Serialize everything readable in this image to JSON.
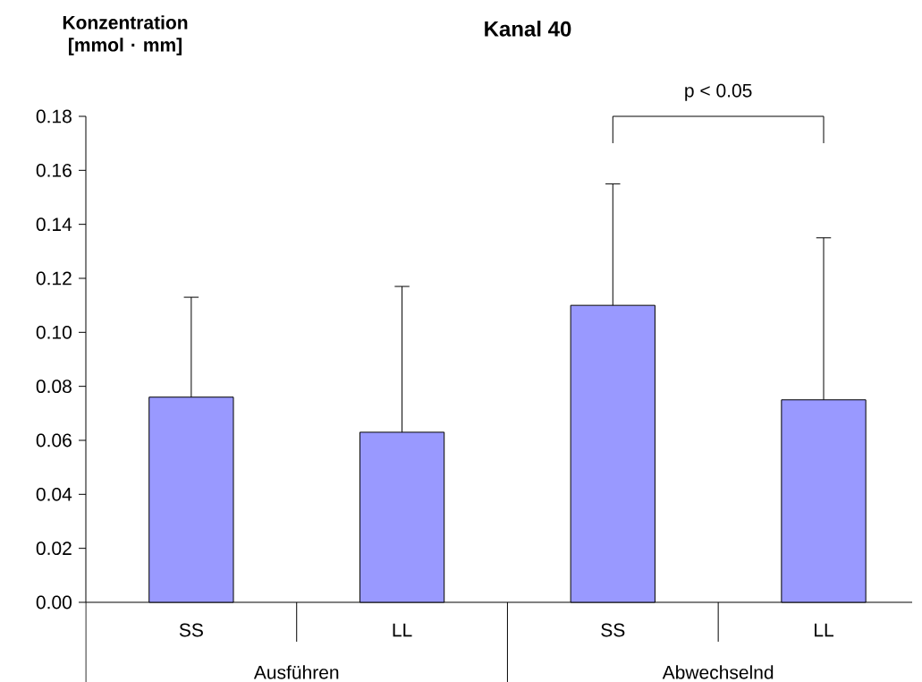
{
  "chart_data": {
    "type": "bar",
    "title": "Kanal 40",
    "ylabel": "Konzentration [mmol · mm]",
    "categories": [
      "SS",
      "LL",
      "SS",
      "LL"
    ],
    "values": [
      0.076,
      0.063,
      0.11,
      0.075
    ],
    "errors": [
      [
        0.076,
        0.113
      ],
      [
        0.063,
        0.117
      ],
      [
        0.11,
        0.155
      ],
      [
        0.075,
        0.135
      ]
    ],
    "color": "#9999ff",
    "ylim": [
      0,
      0.18
    ],
    "yticks": [
      {
        "value": 0,
        "label": "0.00"
      },
      {
        "value": 0.02,
        "label": "0.02"
      },
      {
        "value": 0.04,
        "label": "0.04"
      },
      {
        "value": 0.06,
        "label": "0.06"
      },
      {
        "value": 0.08,
        "label": "0.08"
      },
      {
        "value": 0.1,
        "label": "0.10"
      },
      {
        "value": 0.12,
        "label": "0.12"
      },
      {
        "value": 0.14,
        "label": "0.14"
      },
      {
        "value": 0.16,
        "label": "0.16"
      },
      {
        "value": 0.18,
        "label": "0.18"
      }
    ],
    "annotations": [
      "p < 0.05",
      "Ausführen",
      "Abwechselnd"
    ],
    "grid": false
  }
}
